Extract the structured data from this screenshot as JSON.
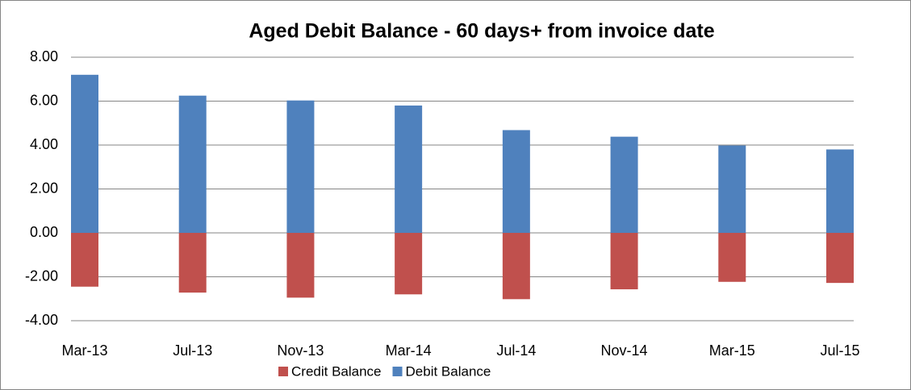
{
  "chart_data": {
    "type": "bar",
    "stacked": true,
    "title": "Aged Debit Balance - 60 days+  from invoice date",
    "categories": [
      "Mar-13",
      "Jul-13",
      "Nov-13",
      "Mar-14",
      "Jul-14",
      "Nov-14",
      "Mar-15",
      "Jul-15"
    ],
    "series": [
      {
        "name": "Credit Balance",
        "color": "#c0504d",
        "values": [
          -2.45,
          -2.72,
          -2.95,
          -2.8,
          -3.02,
          -2.57,
          -2.23,
          -2.28
        ]
      },
      {
        "name": "Debit Balance",
        "color": "#4f81bd",
        "values": [
          7.2,
          6.25,
          6.03,
          5.8,
          4.68,
          4.38,
          3.98,
          3.8
        ]
      }
    ],
    "ylim": [
      -4,
      8
    ],
    "yticks": [
      {
        "value": -4,
        "label": "-4.00"
      },
      {
        "value": -2,
        "label": "-2.00"
      },
      {
        "value": 0,
        "label": "0.00"
      },
      {
        "value": 2,
        "label": "2.00"
      },
      {
        "value": 4,
        "label": "4.00"
      },
      {
        "value": 6,
        "label": "6.00"
      },
      {
        "value": 8,
        "label": "8.00"
      }
    ],
    "grid": true,
    "legend": "bottom"
  }
}
